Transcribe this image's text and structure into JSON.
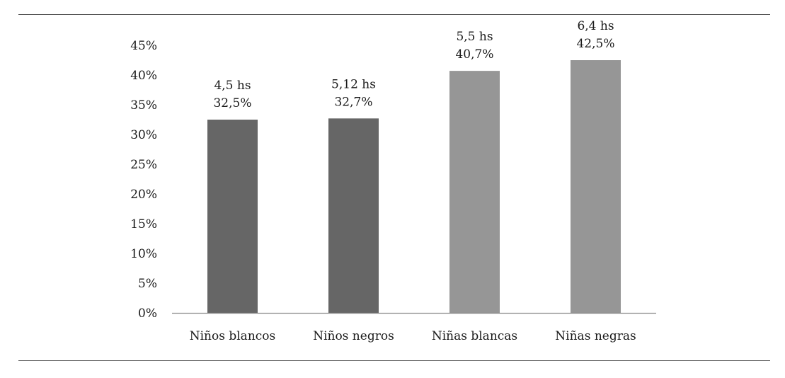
{
  "chart_data": {
    "type": "bar",
    "categories": [
      "Niños blancos",
      "Niños negros",
      "Niñas blancas",
      "Niñas negras"
    ],
    "values": [
      32.5,
      32.7,
      40.7,
      42.5
    ],
    "value_labels": [
      "32,5%",
      "32,7%",
      "40,7%",
      "42,5%"
    ],
    "hour_labels": [
      "4,5 hs",
      "5,12 hs",
      "5,5 hs",
      "6,4 hs"
    ],
    "bar_colors": [
      "#666666",
      "#666666",
      "#969696",
      "#969696"
    ],
    "ylim": [
      0,
      45
    ],
    "yticks": [
      0,
      5,
      10,
      15,
      20,
      25,
      30,
      35,
      40,
      45
    ],
    "ytick_labels": [
      "0%",
      "5%",
      "10%",
      "15%",
      "20%",
      "25%",
      "30%",
      "35%",
      "40%",
      "45%"
    ],
    "grid": false,
    "legend": "none",
    "title": "",
    "xlabel": "",
    "ylabel": ""
  }
}
